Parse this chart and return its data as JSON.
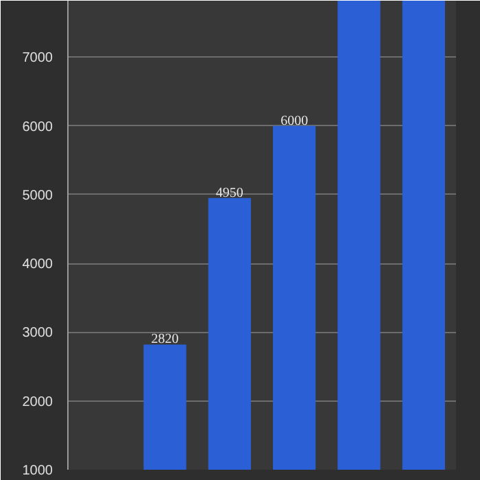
{
  "chart_data": {
    "type": "bar",
    "categories": [
      null,
      null,
      null,
      null,
      null,
      null
    ],
    "values": [
      null,
      2820,
      4950,
      6000,
      7820,
      7820
    ],
    "value_labels": [
      null,
      "2820",
      "4950",
      "6000",
      null,
      null
    ],
    "color": "#2b5fd6",
    "ylim": [
      1000,
      7820
    ],
    "yticks": [
      1000,
      2000,
      3000,
      4000,
      5000,
      6000,
      7000
    ],
    "grid": "y",
    "tick_labels": "y"
  }
}
